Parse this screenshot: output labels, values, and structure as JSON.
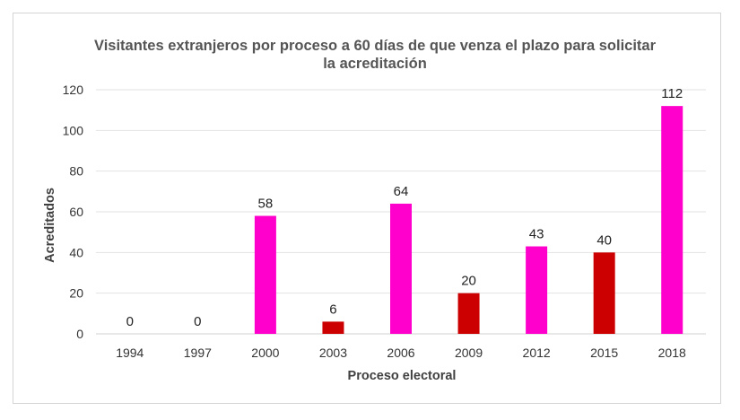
{
  "chart_data": {
    "type": "bar",
    "title_lines": [
      "Visitantes extranjeros por proceso a 60 días de que venza el plazo para solicitar",
      "la acreditación"
    ],
    "xlabel": "Proceso electoral",
    "ylabel": "Acreditados",
    "categories": [
      "1994",
      "1997",
      "2000",
      "2003",
      "2006",
      "2009",
      "2012",
      "2015",
      "2018"
    ],
    "values": [
      0,
      0,
      58,
      6,
      64,
      20,
      43,
      40,
      112
    ],
    "data_labels": [
      "0",
      "0",
      "58",
      "6",
      "64",
      "20",
      "43",
      "40",
      "112"
    ],
    "bar_colors": [
      "#ff00cc",
      "#cc0000",
      "#ff00cc",
      "#cc0000",
      "#ff00cc",
      "#cc0000",
      "#ff00cc",
      "#cc0000",
      "#ff00cc"
    ],
    "ylim": [
      0,
      120
    ],
    "yticks": [
      0,
      20,
      40,
      60,
      80,
      100,
      120
    ],
    "ytick_labels": [
      "0",
      "20",
      "40",
      "60",
      "80",
      "100",
      "120"
    ],
    "grid": true,
    "legend": "none"
  }
}
